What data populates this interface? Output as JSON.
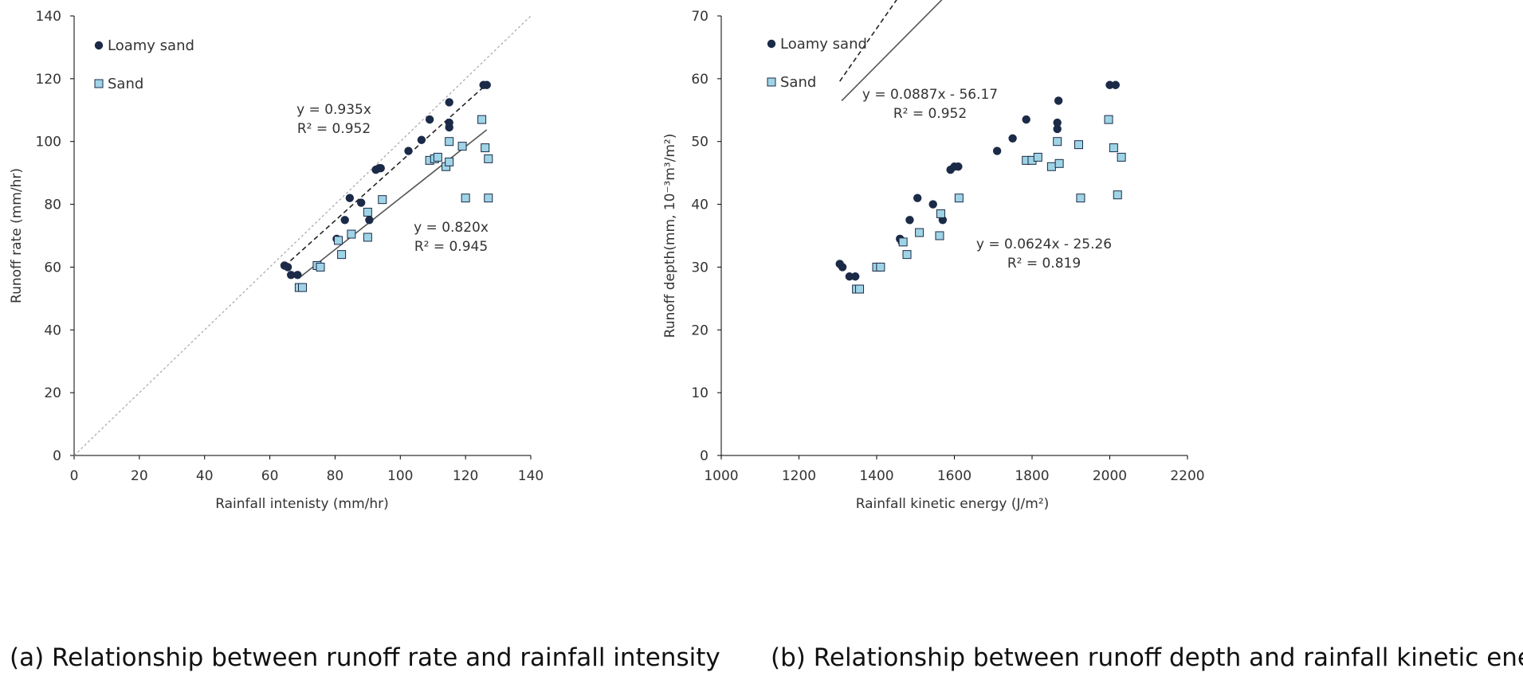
{
  "captions": {
    "a": "(a) Relationship between runoff rate and rainfall intensity",
    "b": "(b) Relationship between runoff depth and rainfall kinetic energy"
  },
  "colors": {
    "loamy_sand": "#1b2a47",
    "sand": "#9fd4e6",
    "sand_edge": "#1b2a47",
    "one_to_one": "#a6a6a6",
    "fit_line": "#555555"
  },
  "chart_data": [
    {
      "type": "scatter",
      "title": "",
      "xlabel": "Rainfall intenisty (mm/hr)",
      "ylabel": "Runoff rate (mm/hr)",
      "xlim": [
        0,
        140
      ],
      "ylim": [
        0,
        140
      ],
      "x_ticks": [
        "0",
        "20",
        "40",
        "60",
        "80",
        "100",
        "120",
        "140"
      ],
      "y_ticks": [
        "0",
        "20",
        "40",
        "60",
        "80",
        "100",
        "120",
        "140"
      ],
      "grid": false,
      "legend_position": "top-left",
      "one_to_one_line": true,
      "series": [
        {
          "name": "Loamy sand",
          "marker": "circle",
          "points": [
            [
              64.5,
              60.5
            ],
            [
              65.5,
              60
            ],
            [
              66.5,
              57.5
            ],
            [
              68.5,
              57.5
            ],
            [
              80.5,
              69
            ],
            [
              83,
              75
            ],
            [
              84.5,
              82
            ],
            [
              88,
              80.5
            ],
            [
              90.5,
              75
            ],
            [
              92.5,
              91
            ],
            [
              93.5,
              91.5
            ],
            [
              94,
              91.5
            ],
            [
              102.5,
              97
            ],
            [
              106.5,
              100.5
            ],
            [
              109,
              107
            ],
            [
              115,
              104.5
            ],
            [
              115,
              106
            ],
            [
              115,
              112.5
            ],
            [
              125.5,
              118
            ],
            [
              126.5,
              118
            ]
          ],
          "fit": {
            "slope": 0.935,
            "intercept": 0,
            "x_range": [
              64.5,
              126.5
            ],
            "style": "dashed"
          },
          "equation": "y = 0.935x",
          "r2": "R² = 0.952"
        },
        {
          "name": "Sand",
          "marker": "square",
          "points": [
            [
              69,
              53.5
            ],
            [
              70,
              53.5
            ],
            [
              74.5,
              60.5
            ],
            [
              75.5,
              60
            ],
            [
              81,
              68.5
            ],
            [
              82,
              64
            ],
            [
              85,
              70.5
            ],
            [
              90,
              77.5
            ],
            [
              90,
              69.5
            ],
            [
              94.5,
              81.5
            ],
            [
              109,
              94
            ],
            [
              110.5,
              94.5
            ],
            [
              111.5,
              95
            ],
            [
              114,
              92
            ],
            [
              115,
              93.5
            ],
            [
              115,
              100
            ],
            [
              119,
              98.5
            ],
            [
              120,
              82
            ],
            [
              125,
              107
            ],
            [
              126,
              98
            ],
            [
              127,
              94.5
            ],
            [
              127,
              82
            ]
          ],
          "fit": {
            "slope": 0.82,
            "intercept": 0,
            "x_range": [
              69,
              126.5
            ],
            "style": "solid"
          },
          "equation": "y = 0.820x",
          "r2": "R² = 0.945"
        }
      ]
    },
    {
      "type": "scatter",
      "title": "",
      "xlabel": "Rainfall kinetic energy (J/m²)",
      "ylabel": "Runoff depth(mm, 10⁻³m³/m²)",
      "xlim": [
        1000,
        2200
      ],
      "ylim": [
        0,
        70
      ],
      "x_ticks": [
        "1000",
        "1200",
        "1400",
        "1600",
        "1800",
        "2000",
        "2200"
      ],
      "y_ticks": [
        "0",
        "10",
        "20",
        "30",
        "40",
        "50",
        "60",
        "70"
      ],
      "grid": false,
      "legend_position": "top-left",
      "one_to_one_line": false,
      "series": [
        {
          "name": "Loamy sand",
          "marker": "circle",
          "points": [
            [
              1305,
              30.5
            ],
            [
              1312,
              30
            ],
            [
              1330,
              28.5
            ],
            [
              1345,
              28.5
            ],
            [
              1460,
              34.5
            ],
            [
              1465,
              34
            ],
            [
              1485,
              37.5
            ],
            [
              1505,
              41
            ],
            [
              1545,
              40
            ],
            [
              1570,
              37.5
            ],
            [
              1590,
              45.5
            ],
            [
              1600,
              46
            ],
            [
              1610,
              46
            ],
            [
              1710,
              48.5
            ],
            [
              1750,
              50.5
            ],
            [
              1785,
              53.5
            ],
            [
              1865,
              53
            ],
            [
              1865,
              52
            ],
            [
              1868,
              56.5
            ],
            [
              2000,
              59
            ],
            [
              2015,
              59
            ]
          ],
          "fit": {
            "slope": 0.0887,
            "intercept": -56.17,
            "x_range": [
              1305,
              2020
            ],
            "style": "dashed"
          },
          "equation": "y = 0.0887x - 56.17",
          "r2": "R² = 0.952"
        },
        {
          "name": "Sand",
          "marker": "square",
          "points": [
            [
              1348,
              26.5
            ],
            [
              1356,
              26.5
            ],
            [
              1400,
              30
            ],
            [
              1410,
              30
            ],
            [
              1468,
              34
            ],
            [
              1478,
              32
            ],
            [
              1510,
              35.5
            ],
            [
              1562,
              35
            ],
            [
              1565,
              38.5
            ],
            [
              1612,
              41
            ],
            [
              1785,
              47
            ],
            [
              1800,
              47
            ],
            [
              1815,
              47.5
            ],
            [
              1850,
              46
            ],
            [
              1865,
              50
            ],
            [
              1870,
              46.5
            ],
            [
              1920,
              49.5
            ],
            [
              1925,
              41
            ],
            [
              1997,
              53.5
            ],
            [
              2010,
              49
            ],
            [
              2020,
              41.5
            ],
            [
              2030,
              47.5
            ]
          ],
          "fit": {
            "slope": 0.0624,
            "intercept": -25.26,
            "x_range": [
              1310,
              2030
            ],
            "style": "solid"
          },
          "equation": "y = 0.0624x - 25.26",
          "r2": "R² = 0.819"
        }
      ]
    }
  ]
}
